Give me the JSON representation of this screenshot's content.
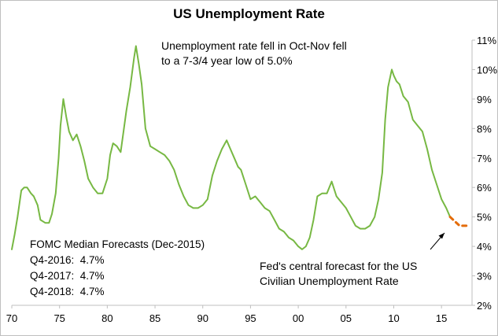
{
  "chart_data": {
    "type": "line",
    "title": "US Unemployment Rate",
    "xlabel": "",
    "ylabel": "",
    "x_ticks": [
      1970,
      1975,
      1980,
      1985,
      1990,
      1995,
      2000,
      2005,
      2010,
      2015
    ],
    "x_tick_labels": [
      "70",
      "75",
      "80",
      "85",
      "90",
      "95",
      "00",
      "05",
      "10",
      "15"
    ],
    "xlim": [
      1970,
      2018.2
    ],
    "y_ticks": [
      2,
      3,
      4,
      5,
      6,
      7,
      8,
      9,
      10,
      11
    ],
    "y_tick_labels": [
      "2%",
      "3%",
      "4%",
      "5%",
      "6%",
      "7%",
      "8%",
      "9%",
      "10%",
      "11%"
    ],
    "ylim": [
      2,
      11
    ],
    "y_axis_side": "right",
    "grid": false,
    "series": [
      {
        "color": "#77b843",
        "style": "solid",
        "x": [
          1970.0,
          1970.3,
          1970.6,
          1971.0,
          1971.3,
          1971.6,
          1972.0,
          1972.3,
          1972.7,
          1973.0,
          1973.5,
          1973.9,
          1974.2,
          1974.6,
          1974.9,
          1975.1,
          1975.4,
          1975.7,
          1976.0,
          1976.4,
          1976.8,
          1977.2,
          1977.6,
          1978.0,
          1978.5,
          1979.0,
          1979.5,
          1980.0,
          1980.3,
          1980.6,
          1981.0,
          1981.4,
          1981.7,
          1982.0,
          1982.4,
          1982.8,
          1983.0,
          1983.3,
          1983.6,
          1984.0,
          1984.5,
          1985.0,
          1985.5,
          1986.0,
          1986.5,
          1987.0,
          1987.5,
          1988.0,
          1988.5,
          1989.0,
          1989.5,
          1990.0,
          1990.5,
          1991.0,
          1991.5,
          1992.0,
          1992.5,
          1992.9,
          1993.3,
          1993.7,
          1994.0,
          1994.5,
          1995.0,
          1995.5,
          1996.0,
          1996.5,
          1997.0,
          1997.5,
          1998.0,
          1998.5,
          1999.0,
          1999.5,
          2000.0,
          2000.4,
          2000.8,
          2001.2,
          2001.6,
          2002.0,
          2002.5,
          2003.0,
          2003.5,
          2004.0,
          2004.5,
          2005.0,
          2005.5,
          2006.0,
          2006.5,
          2007.0,
          2007.5,
          2008.0,
          2008.4,
          2008.8,
          2009.1,
          2009.4,
          2009.8,
          2010.0,
          2010.3,
          2010.6,
          2011.0,
          2011.5,
          2012.0,
          2012.5,
          2013.0,
          2013.5,
          2014.0,
          2014.5,
          2015.0,
          2015.5,
          2015.9
        ],
        "y": [
          3.9,
          4.4,
          5.0,
          5.9,
          6.0,
          6.0,
          5.8,
          5.7,
          5.4,
          4.9,
          4.8,
          4.8,
          5.1,
          5.8,
          7.0,
          8.1,
          9.0,
          8.4,
          7.9,
          7.6,
          7.8,
          7.4,
          6.9,
          6.3,
          6.0,
          5.8,
          5.8,
          6.3,
          7.1,
          7.5,
          7.4,
          7.2,
          7.9,
          8.6,
          9.4,
          10.4,
          10.8,
          10.2,
          9.5,
          8.0,
          7.4,
          7.3,
          7.2,
          7.1,
          6.9,
          6.6,
          6.1,
          5.7,
          5.4,
          5.3,
          5.3,
          5.4,
          5.6,
          6.4,
          6.9,
          7.3,
          7.6,
          7.3,
          7.0,
          6.7,
          6.6,
          6.1,
          5.6,
          5.7,
          5.5,
          5.3,
          5.2,
          4.9,
          4.6,
          4.5,
          4.3,
          4.2,
          4.0,
          3.9,
          4.0,
          4.3,
          4.9,
          5.7,
          5.8,
          5.8,
          6.2,
          5.7,
          5.5,
          5.3,
          5.0,
          4.7,
          4.6,
          4.6,
          4.7,
          5.0,
          5.6,
          6.5,
          8.3,
          9.4,
          10.0,
          9.8,
          9.6,
          9.5,
          9.1,
          8.9,
          8.3,
          8.1,
          7.9,
          7.3,
          6.6,
          6.1,
          5.6,
          5.3,
          5.0
        ]
      },
      {
        "color": "#e46c0a",
        "style": "dashed",
        "x": [
          2015.9,
          2016.9,
          2017.9
        ],
        "y": [
          5.0,
          4.7,
          4.7
        ]
      }
    ]
  },
  "annotations": {
    "top_note": "Unemployment rate fell in Oct-Nov fell\nto a 7-3/4 year low of 5.0%",
    "fed_note": "Fed's central forecast for the US\nCivilian Unemployment Rate",
    "fomc_title": "FOMC Median Forecasts (Dec-2015)",
    "fomc_rows": [
      "Q4-2016:  4.7%",
      "Q4-2017:  4.7%",
      "Q4-2018:  4.7%"
    ]
  }
}
